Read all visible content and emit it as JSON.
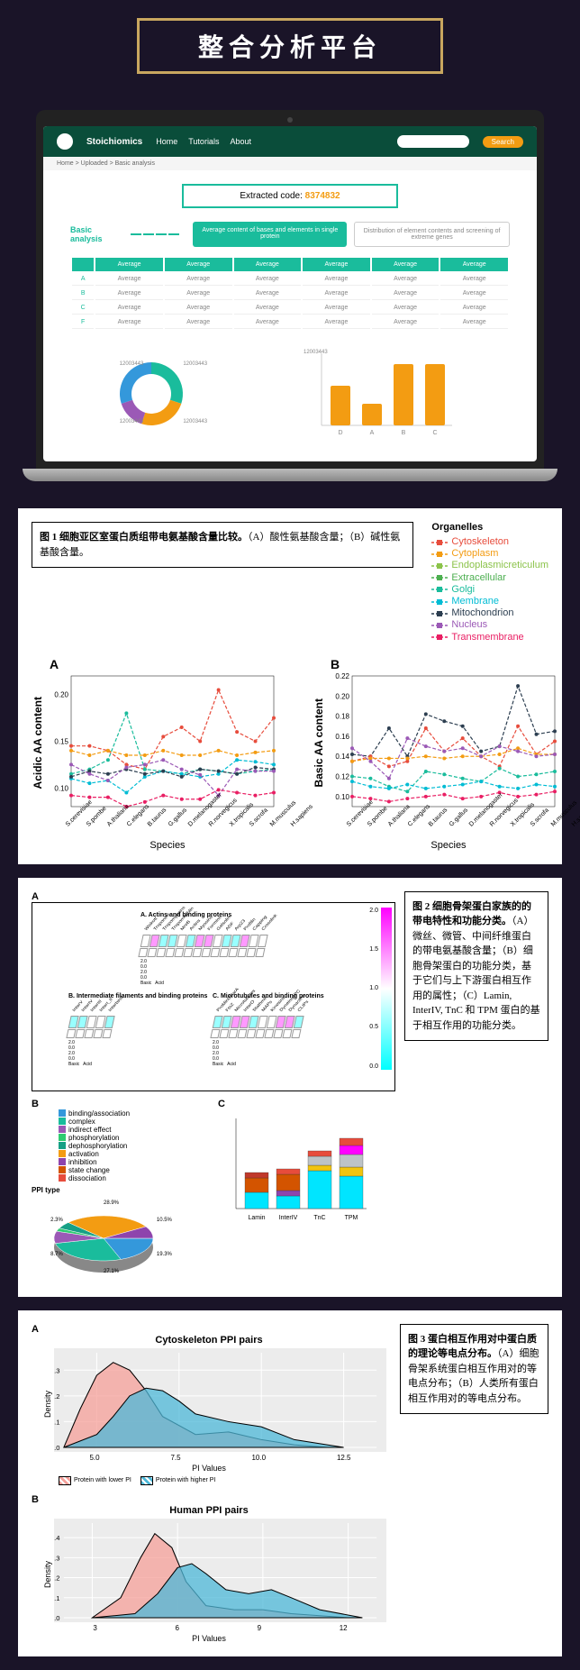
{
  "banner": {
    "text": "整合分析平台",
    "border_color": "#c9a75f",
    "text_color": "#ffffff",
    "bg_color": "#1a1428"
  },
  "laptop": {
    "site_name": "Stoichiomics",
    "nav": [
      "Home",
      "Tutorials",
      "About"
    ],
    "search_btn": "Search",
    "breadcrumb": "Home > Uploaded > Basic analysis",
    "code_label": "Extracted code:",
    "code_value": "8374832",
    "section_label": "Basic analysis",
    "tabs": [
      "Average content of bases and elements in single protein",
      "Distribution of element contents and screening of extreme genes"
    ],
    "table": {
      "headers": [
        "Average",
        "Average",
        "Average",
        "Average",
        "Average",
        "Average"
      ],
      "rows": [
        [
          "A",
          "Average",
          "Average",
          "Average",
          "Average",
          "Average",
          "Average"
        ],
        [
          "B",
          "Average",
          "Average",
          "Average",
          "Average",
          "Average",
          "Average"
        ],
        [
          "C",
          "Average",
          "Average",
          "Average",
          "Average",
          "Average",
          "Average"
        ],
        [
          "F",
          "Average",
          "Average",
          "Average",
          "Average",
          "Average",
          "Average"
        ]
      ]
    },
    "donut": {
      "segments": [
        {
          "color": "#1abc9c",
          "pct": 30
        },
        {
          "color": "#f39c12",
          "pct": 25
        },
        {
          "color": "#9b59b6",
          "pct": 15
        },
        {
          "color": "#3498db",
          "pct": 30
        }
      ],
      "labels": [
        "12003443",
        "12003443",
        "12003443",
        "12003443"
      ]
    },
    "bars": {
      "label": "12003443",
      "values": [
        55,
        30,
        85,
        85
      ],
      "categories": [
        "D",
        "A",
        "B",
        "C"
      ],
      "color": "#f39c12"
    }
  },
  "panel1": {
    "caption_title": "图 1 细胞亚区室蛋白质组带电氨基酸含量比较。",
    "caption_body": "（A）酸性氨基酸含量；（B）碱性氨基酸含量。",
    "legend_title": "Organelles",
    "legend": [
      {
        "name": "Cytoskeleton",
        "color": "#e74c3c"
      },
      {
        "name": "Cytoplasm",
        "color": "#f39c12"
      },
      {
        "name": "Endoplasmicreticulum",
        "color": "#8bc34a"
      },
      {
        "name": "Extracellular",
        "color": "#4caf50"
      },
      {
        "name": "Golgi",
        "color": "#1abc9c"
      },
      {
        "name": "Membrane",
        "color": "#00bcd4"
      },
      {
        "name": "Mitochondrion",
        "color": "#2c3e50"
      },
      {
        "name": "Nucleus",
        "color": "#9b59b6"
      },
      {
        "name": "Transmembrane",
        "color": "#e91e63"
      }
    ],
    "species": [
      "S.cerevisiae",
      "S.pombe",
      "A.thaliana",
      "C.elegans",
      "B.taurus",
      "G.gallus",
      "D.melanogaster",
      "R.norvegicus",
      "X.tropicalis",
      "S.scrofa",
      "M.musculus",
      "H.sapiens"
    ],
    "subA": {
      "label": "A",
      "ylabel": "Acidic AA content",
      "xlabel": "Species",
      "yticks": [
        "0.10",
        "0.15",
        "0.20"
      ],
      "ylim": [
        0.08,
        0.22
      ],
      "series": {
        "Cytoskeleton": [
          0.145,
          0.145,
          0.14,
          0.125,
          0.12,
          0.155,
          0.165,
          0.15,
          0.205,
          0.16,
          0.15,
          0.175
        ],
        "Cytoplasm": [
          0.14,
          0.135,
          0.14,
          0.135,
          0.135,
          0.14,
          0.135,
          0.135,
          0.14,
          0.135,
          0.138,
          0.14
        ],
        "Golgi": [
          0.115,
          0.12,
          0.13,
          0.18,
          0.12,
          0.118,
          0.115,
          0.12,
          0.118,
          0.115,
          0.118,
          0.12
        ],
        "Membrane": [
          0.11,
          0.105,
          0.108,
          0.095,
          0.112,
          0.118,
          0.115,
          0.112,
          0.115,
          0.13,
          0.128,
          0.125
        ],
        "Mitochondrion": [
          0.112,
          0.118,
          0.115,
          0.12,
          0.115,
          0.118,
          0.112,
          0.12,
          0.118,
          0.115,
          0.122,
          0.12
        ],
        "Nucleus": [
          0.125,
          0.115,
          0.108,
          0.122,
          0.125,
          0.13,
          0.12,
          0.114,
          0.092,
          0.12,
          0.118,
          0.118
        ],
        "Transmembrane": [
          0.092,
          0.09,
          0.09,
          0.08,
          0.085,
          0.092,
          0.088,
          0.088,
          0.098,
          0.095,
          0.092,
          0.095
        ]
      }
    },
    "subB": {
      "label": "B",
      "ylabel": "Basic AA content",
      "xlabel": "Species",
      "yticks": [
        "0.10",
        "0.12",
        "0.14",
        "0.16",
        "0.18",
        "0.20",
        "0.22"
      ],
      "ylim": [
        0.09,
        0.22
      ],
      "series": {
        "Mitochondrion": [
          0.142,
          0.14,
          0.168,
          0.14,
          0.182,
          0.175,
          0.17,
          0.145,
          0.15,
          0.21,
          0.162,
          0.165
        ],
        "Cytoskeleton": [
          0.135,
          0.14,
          0.13,
          0.135,
          0.168,
          0.145,
          0.158,
          0.14,
          0.13,
          0.17,
          0.142,
          0.155
        ],
        "Cytoplasm": [
          0.135,
          0.138,
          0.138,
          0.138,
          0.14,
          0.138,
          0.14,
          0.14,
          0.142,
          0.148,
          0.142,
          0.142
        ],
        "Nucleus": [
          0.148,
          0.135,
          0.118,
          0.158,
          0.15,
          0.145,
          0.148,
          0.14,
          0.15,
          0.145,
          0.14,
          0.142
        ],
        "Golgi": [
          0.12,
          0.118,
          0.11,
          0.105,
          0.125,
          0.122,
          0.118,
          0.115,
          0.128,
          0.12,
          0.122,
          0.125
        ],
        "Membrane": [
          0.115,
          0.11,
          0.108,
          0.112,
          0.108,
          0.11,
          0.112,
          0.115,
          0.11,
          0.108,
          0.112,
          0.11
        ],
        "Transmembrane": [
          0.1,
          0.098,
          0.095,
          0.098,
          0.1,
          0.102,
          0.098,
          0.1,
          0.104,
          0.1,
          0.102,
          0.105
        ]
      }
    }
  },
  "panel2": {
    "caption_title": "图 2 细胞骨架蛋白家族的的带电特性和功能分类。",
    "caption_body": "（A）微丝、微管、中间纤维蛋白的带电氨基酸含量；（B）细胞骨架蛋白的功能分类，基于它们与上下游蛋白相互作用的属性；（C）Lamin, InterIV, TnC 和 TPM 蛋白的基于相互作用的功能分类。",
    "gradient": {
      "max": "2.0",
      "mid": "1.0",
      "min": "0.0",
      "top_color": "#ff00ff",
      "bottom_color": "#00ffff"
    },
    "group_titles": [
      "A. Actins and binding proteins",
      "B. Intermediate filaments and binding proteins",
      "C. Microtubules and binding proteins"
    ],
    "groupA_labels": [
      "Wiskott",
      "Troponins",
      "Tropomyosins",
      "Tropomodulin",
      "MreB",
      "Actins",
      "Myosins",
      "Formins",
      "Gelsolin",
      "ADF",
      "Arp23",
      "Profilin",
      "Capping",
      "Crosslink"
    ],
    "groupB_labels": [
      "InterV",
      "InterIV",
      "InterIII",
      "InterI_II",
      "Interbind"
    ],
    "groupC_labels": [
      "ProMinDParA",
      "FtsZ",
      "Microtubules",
      "InterO",
      "Stathmin",
      "MAPs",
      "Kinesins",
      "DyneinsAPC",
      "Dynactins",
      "CLIPs"
    ],
    "axis_labels": [
      "2.0",
      "0.0",
      "2.0",
      "0.0",
      "Basic",
      "Acid"
    ],
    "ppi_title": "PPI type",
    "ppi_legend": [
      {
        "name": "binding/association",
        "color": "#3498db"
      },
      {
        "name": "complex",
        "color": "#1abc9c"
      },
      {
        "name": "indirect effect",
        "color": "#9b59b6"
      },
      {
        "name": "phosphorylation",
        "color": "#2ecc71"
      },
      {
        "name": "dephosphorylation",
        "color": "#16a085"
      },
      {
        "name": "activation",
        "color": "#f39c12"
      },
      {
        "name": "inhibition",
        "color": "#8e44ad"
      },
      {
        "name": "state change",
        "color": "#d35400"
      },
      {
        "name": "dissociation",
        "color": "#e74c3c"
      }
    ],
    "pie_labels": [
      "19.3%",
      "27.1%",
      "8.7%",
      "2.3%",
      "28.9%",
      "10.5%"
    ],
    "stacked": {
      "categories": [
        "Lamin",
        "InterIV",
        "TnC",
        "TPM"
      ],
      "bars": [
        [
          {
            "c": "#00e5ff",
            "h": 18
          },
          {
            "c": "#d35400",
            "h": 16
          },
          {
            "c": "#c0392b",
            "h": 6
          }
        ],
        [
          {
            "c": "#00e5ff",
            "h": 14
          },
          {
            "c": "#8e44ad",
            "h": 6
          },
          {
            "c": "#d35400",
            "h": 18
          },
          {
            "c": "#e74c3c",
            "h": 6
          }
        ],
        [
          {
            "c": "#00e5ff",
            "h": 42
          },
          {
            "c": "#f1c40f",
            "h": 6
          },
          {
            "c": "#bdc3c7",
            "h": 10
          },
          {
            "c": "#e74c3c",
            "h": 6
          }
        ],
        [
          {
            "c": "#00e5ff",
            "h": 36
          },
          {
            "c": "#f1c40f",
            "h": 10
          },
          {
            "c": "#bdc3c7",
            "h": 14
          },
          {
            "c": "#ff00ff",
            "h": 10
          },
          {
            "c": "#e74c3c",
            "h": 8
          }
        ]
      ]
    }
  },
  "panel3": {
    "caption_title": "图 3 蛋白相互作用对中蛋白质的理论等电点分布。",
    "caption_body": "（A）细胞骨架系统蛋白相互作用对的等电点分布；（B）人类所有蛋白相互作用对的等电点分布。",
    "legend": [
      {
        "name": "Protein with lower PI",
        "color": "#f5a09a",
        "hatch": true
      },
      {
        "name": "Protein with higher PI",
        "color": "#4db8d8",
        "hatch": true
      }
    ],
    "plotA": {
      "title": "Cytoskeleton PPI pairs",
      "label": "A",
      "ylabel": "Density",
      "yticks": [
        "0.0",
        "0.1",
        "0.2",
        "0.3"
      ],
      "xticks": [
        "5.0",
        "7.5",
        "10.0",
        "12.5"
      ],
      "xlabel": "PI Values",
      "lower": {
        "color": "#f5a09a",
        "points": [
          [
            4,
            0
          ],
          [
            4.5,
            0.15
          ],
          [
            5,
            0.28
          ],
          [
            5.5,
            0.33
          ],
          [
            6,
            0.3
          ],
          [
            6.5,
            0.22
          ],
          [
            7,
            0.12
          ],
          [
            8,
            0.05
          ],
          [
            9,
            0.06
          ],
          [
            10,
            0.03
          ],
          [
            11,
            0.01
          ],
          [
            12,
            0
          ]
        ]
      },
      "higher": {
        "color": "#4db8d8",
        "points": [
          [
            4,
            0
          ],
          [
            5,
            0.05
          ],
          [
            5.5,
            0.12
          ],
          [
            6,
            0.2
          ],
          [
            6.5,
            0.23
          ],
          [
            7,
            0.22
          ],
          [
            7.5,
            0.18
          ],
          [
            8,
            0.13
          ],
          [
            9,
            0.1
          ],
          [
            10,
            0.08
          ],
          [
            11,
            0.03
          ],
          [
            12.5,
            0
          ]
        ]
      }
    },
    "plotB": {
      "title": "Human PPI pairs",
      "label": "B",
      "ylabel": "Density",
      "yticks": [
        "0.0",
        "0.1",
        "0.2",
        "0.3",
        "0.4"
      ],
      "xticks": [
        "3",
        "6",
        "9",
        "12"
      ],
      "xlabel": "PI Values",
      "lower": {
        "color": "#f5a09a",
        "points": [
          [
            3,
            0
          ],
          [
            4,
            0.1
          ],
          [
            4.7,
            0.3
          ],
          [
            5.2,
            0.42
          ],
          [
            5.8,
            0.35
          ],
          [
            6.3,
            0.18
          ],
          [
            7,
            0.06
          ],
          [
            8,
            0.04
          ],
          [
            9,
            0.04
          ],
          [
            10,
            0.02
          ],
          [
            11,
            0.01
          ],
          [
            12,
            0
          ]
        ]
      },
      "higher": {
        "color": "#4db8d8",
        "points": [
          [
            3,
            0
          ],
          [
            4.5,
            0.02
          ],
          [
            5.3,
            0.12
          ],
          [
            6,
            0.25
          ],
          [
            6.5,
            0.27
          ],
          [
            7,
            0.22
          ],
          [
            7.7,
            0.14
          ],
          [
            8.5,
            0.12
          ],
          [
            9.3,
            0.14
          ],
          [
            10,
            0.1
          ],
          [
            11,
            0.04
          ],
          [
            12.5,
            0
          ]
        ]
      }
    }
  }
}
